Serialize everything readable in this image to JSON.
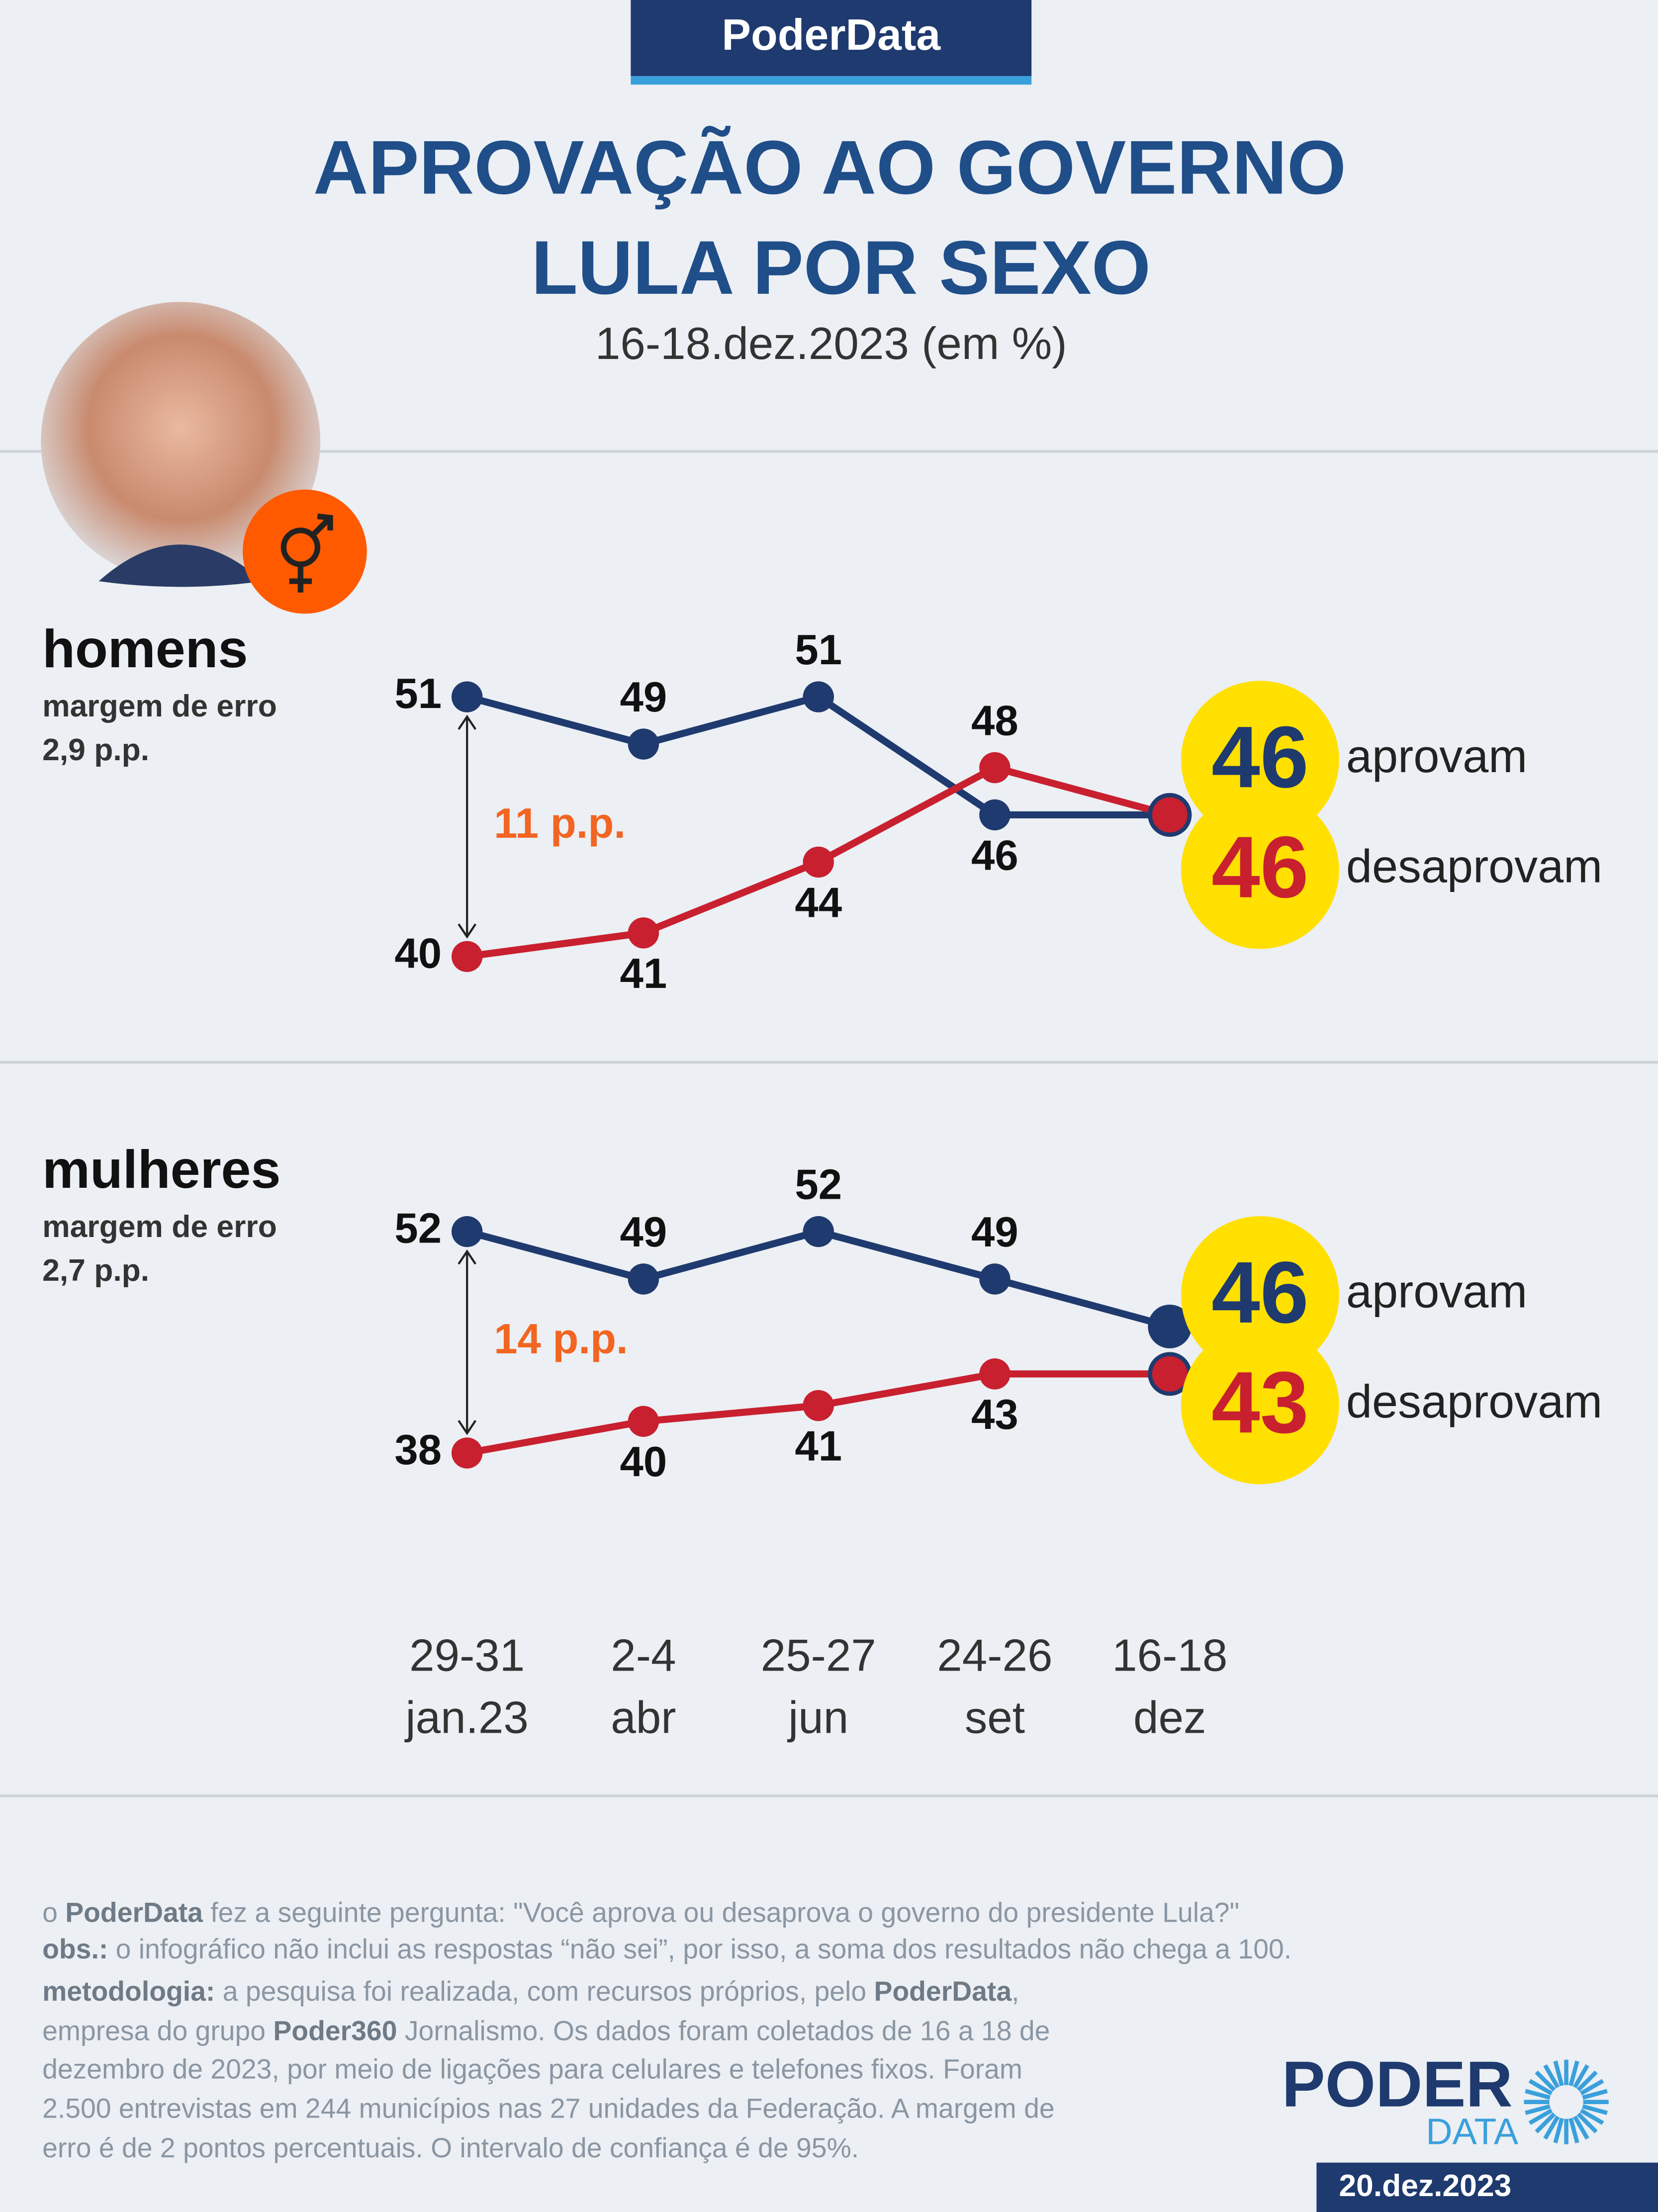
{
  "header": {
    "badge": "PoderData",
    "title_lines": [
      "APROVAÇÃO AO GOVERNO",
      "LULA POR SEXO"
    ],
    "subtitle": "16-18.dez.2023 (em %)"
  },
  "chart_data": [
    {
      "type": "line",
      "title": "homens",
      "subtitle_lines": [
        "margem de erro",
        "2,9 p.p."
      ],
      "annotation": "11 p.p.",
      "ylim": [
        38,
        53
      ],
      "series": [
        {
          "name": "aprovam",
          "color": "#1f3a6e",
          "values": [
            51,
            49,
            51,
            46,
            46
          ]
        },
        {
          "name": "desaprovam",
          "color": "#c8202f",
          "values": [
            40,
            41,
            44,
            48,
            46
          ]
        }
      ]
    },
    {
      "type": "line",
      "title": "mulheres",
      "subtitle_lines": [
        "margem de erro",
        "2,7 p.p."
      ],
      "annotation": "14 p.p.",
      "ylim": [
        36,
        54
      ],
      "categories": [
        "29-31\njan.23",
        "2-4\nabr",
        "25-27\njun",
        "24-26\nset",
        "16-18\ndez"
      ],
      "series": [
        {
          "name": "aprovam",
          "color": "#1f3a6e",
          "values": [
            52,
            49,
            52,
            49,
            46
          ]
        },
        {
          "name": "desaprovam",
          "color": "#c8202f",
          "values": [
            38,
            40,
            41,
            43,
            43
          ]
        }
      ]
    }
  ],
  "footer": {
    "lines": [
      [
        {
          "text": "o ",
          "bold": false
        },
        {
          "text": "PoderData",
          "bold": true
        },
        {
          "text": " fez a seguinte pergunta: \"Você aprova ou desaprova o governo do presidente Lula?\"",
          "bold": false
        }
      ],
      [
        {
          "text": "obs.:",
          "bold": true
        },
        {
          "text": " o infográfico não inclui as respostas “não sei”, por isso, a soma dos resultados não chega a 100.",
          "bold": false
        }
      ],
      [
        {
          "text": "metodologia:",
          "bold": true
        },
        {
          "text": " a pesquisa foi realizada, com recursos próprios, pelo ",
          "bold": false
        },
        {
          "text": "PoderData",
          "bold": true
        },
        {
          "text": ",",
          "bold": false
        }
      ],
      [
        {
          "text": "empresa do grupo ",
          "bold": false
        },
        {
          "text": "Poder360",
          "bold": true
        },
        {
          "text": " Jornalismo. Os dados foram coletados de 16 a 18 de",
          "bold": false
        }
      ],
      [
        {
          "text": "dezembro de 2023, por meio de ligações para celulares e telefones fixos. Foram",
          "bold": false
        }
      ],
      [
        {
          "text": "2.500 entrevistas em 244 municípios nas 27 unidades da Federação. A margem de",
          "bold": false
        }
      ],
      [
        {
          "text": "erro é de 2 pontos percentuais. O intervalo de confiança é de 95%.",
          "bold": false
        }
      ]
    ],
    "logo_main": "PODER",
    "logo_sub": "DATA",
    "date": "20.dez.2023"
  }
}
